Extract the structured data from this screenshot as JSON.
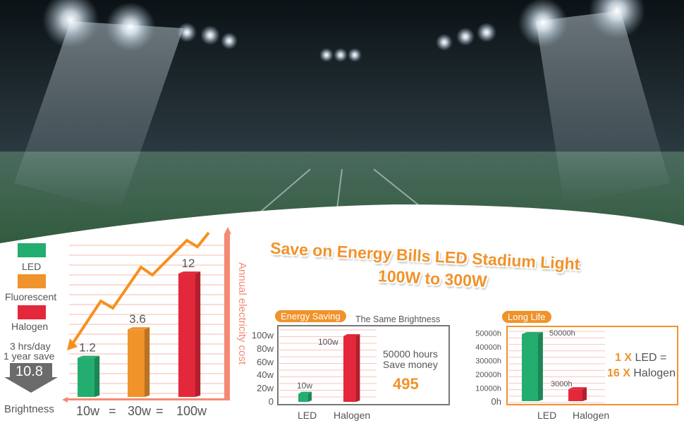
{
  "title": {
    "line1": "Save on Energy Bills LED Stadium Light",
    "line2": "100W to 300W"
  },
  "colors": {
    "led": "#23ad6e",
    "fluorescent": "#f0932b",
    "halogen": "#e3283b",
    "accent": "#f0932b",
    "grid": "#f8c6bd"
  },
  "chart_data": [
    {
      "type": "bar",
      "title": "",
      "categories": [
        "10w",
        "30w",
        "100w"
      ],
      "series_names": [
        "LED",
        "Fluorescent",
        "Halogen"
      ],
      "values": [
        1.2,
        3.6,
        12
      ],
      "xlabel": "Brightness",
      "ylabel": "Annual electricity cost",
      "equals": "=",
      "note": {
        "line1": "3 hrs/day",
        "line2": "1 year save",
        "value": "10.8"
      }
    },
    {
      "type": "bar",
      "title": "Energy Saving",
      "subtitle": "The Same Brightness",
      "categories": [
        "LED",
        "Halogen"
      ],
      "values": [
        10,
        100
      ],
      "value_labels": [
        "10w",
        "100w"
      ],
      "ylim": [
        0,
        100
      ],
      "yticks": [
        "0",
        "20w",
        "40w",
        "60w",
        "80w",
        "100w"
      ],
      "side": {
        "line1": "50000 hours",
        "line2": "Save money",
        "value": "495"
      }
    },
    {
      "type": "bar",
      "title": "Long Life",
      "categories": [
        "LED",
        "Halogen"
      ],
      "values": [
        50000,
        3000
      ],
      "value_labels": [
        "50000h",
        "3000h"
      ],
      "ylim": [
        0,
        50000
      ],
      "yticks": [
        "0h",
        "10000h",
        "20000h",
        "30000h",
        "40000h",
        "50000h"
      ],
      "side": {
        "a": "1 X",
        "b": "LED =",
        "c": "16 X",
        "d": "Halogen"
      }
    }
  ]
}
